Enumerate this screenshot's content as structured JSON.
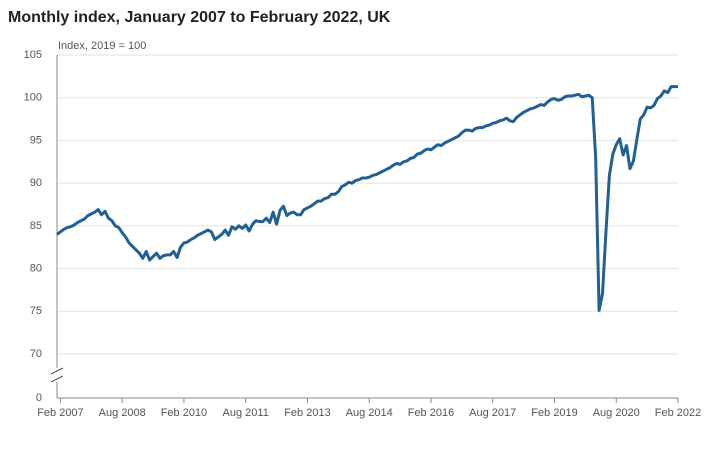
{
  "chart_data": {
    "type": "line",
    "title": "Monthly index, January 2007 to February 2022, UK",
    "y_label": "Index, 2019 = 100",
    "categories": [
      null,
      "Feb 2007",
      null,
      null,
      null,
      null,
      null,
      null,
      null,
      null,
      null,
      null,
      null,
      null,
      null,
      null,
      null,
      null,
      null,
      "Aug 2008",
      null,
      null,
      null,
      null,
      null,
      null,
      null,
      null,
      null,
      null,
      null,
      null,
      null,
      null,
      null,
      null,
      null,
      "Feb 2010",
      null,
      null,
      null,
      null,
      null,
      null,
      null,
      null,
      null,
      null,
      null,
      null,
      null,
      null,
      null,
      null,
      null,
      "Aug 2011",
      null,
      null,
      null,
      null,
      null,
      null,
      null,
      null,
      null,
      null,
      null,
      null,
      null,
      null,
      null,
      null,
      null,
      "Feb 2013",
      null,
      null,
      null,
      null,
      null,
      null,
      null,
      null,
      null,
      null,
      null,
      null,
      null,
      null,
      null,
      null,
      null,
      "Aug 2014",
      null,
      null,
      null,
      null,
      null,
      null,
      null,
      null,
      null,
      null,
      null,
      null,
      null,
      null,
      null,
      null,
      null,
      "Feb 2016",
      null,
      null,
      null,
      null,
      null,
      null,
      null,
      null,
      null,
      null,
      null,
      null,
      null,
      null,
      null,
      null,
      null,
      "Aug 2017",
      null,
      null,
      null,
      null,
      null,
      null,
      null,
      null,
      null,
      null,
      null,
      null,
      null,
      null,
      null,
      null,
      null,
      "Feb 2019",
      null,
      null,
      null,
      null,
      null,
      null,
      null,
      null,
      null,
      null,
      null,
      null,
      null,
      null,
      null,
      null,
      null,
      "Aug 2020",
      null,
      null,
      null,
      null,
      null,
      null,
      null,
      null,
      null,
      null,
      null,
      null,
      null,
      null,
      null,
      null,
      null,
      "Feb 2022"
    ],
    "values": [
      84.0,
      84.3,
      84.6,
      84.8,
      84.9,
      85.1,
      85.4,
      85.6,
      85.8,
      86.2,
      86.4,
      86.6,
      86.9,
      86.3,
      86.7,
      85.9,
      85.6,
      85.0,
      84.8,
      84.2,
      83.7,
      83.0,
      82.6,
      82.2,
      81.8,
      81.2,
      82.0,
      81.0,
      81.4,
      81.8,
      81.2,
      81.5,
      81.6,
      81.6,
      82.0,
      81.3,
      82.5,
      83.0,
      83.1,
      83.4,
      83.6,
      83.9,
      84.1,
      84.3,
      84.5,
      84.3,
      83.4,
      83.7,
      84.0,
      84.5,
      83.9,
      84.9,
      84.6,
      85.0,
      84.7,
      85.1,
      84.4,
      85.2,
      85.6,
      85.5,
      85.5,
      85.9,
      85.4,
      86.6,
      85.2,
      86.8,
      87.3,
      86.2,
      86.5,
      86.6,
      86.3,
      86.3,
      86.9,
      87.1,
      87.3,
      87.6,
      87.9,
      87.9,
      88.2,
      88.3,
      88.7,
      88.7,
      89.0,
      89.6,
      89.8,
      90.1,
      90.0,
      90.3,
      90.4,
      90.6,
      90.6,
      90.7,
      90.9,
      91.0,
      91.2,
      91.4,
      91.6,
      91.8,
      92.1,
      92.3,
      92.2,
      92.5,
      92.6,
      92.9,
      93.0,
      93.4,
      93.5,
      93.8,
      94.0,
      93.9,
      94.2,
      94.5,
      94.4,
      94.7,
      94.9,
      95.1,
      95.3,
      95.5,
      95.9,
      96.2,
      96.2,
      96.1,
      96.4,
      96.5,
      96.5,
      96.7,
      96.8,
      97.0,
      97.1,
      97.3,
      97.4,
      97.6,
      97.3,
      97.2,
      97.7,
      98.0,
      98.3,
      98.5,
      98.7,
      98.8,
      99.0,
      99.2,
      99.1,
      99.5,
      99.8,
      99.9,
      99.7,
      99.8,
      100.1,
      100.2,
      100.2,
      100.3,
      100.4,
      100.1,
      100.2,
      100.3,
      100.0,
      93.0,
      75.1,
      77.1,
      84.3,
      90.9,
      93.4,
      94.5,
      95.2,
      93.3,
      94.4,
      91.7,
      92.6,
      95.1,
      97.5,
      98.0,
      98.9,
      98.8,
      99.1,
      99.9,
      100.2,
      100.8,
      100.6,
      101.3,
      101.3,
      101.3
    ],
    "color": "#206095",
    "ylim": [
      0,
      105
    ],
    "yticks": [
      0,
      70,
      75,
      80,
      85,
      90,
      95,
      100,
      105
    ],
    "y_axis_break": true,
    "grid": true
  }
}
